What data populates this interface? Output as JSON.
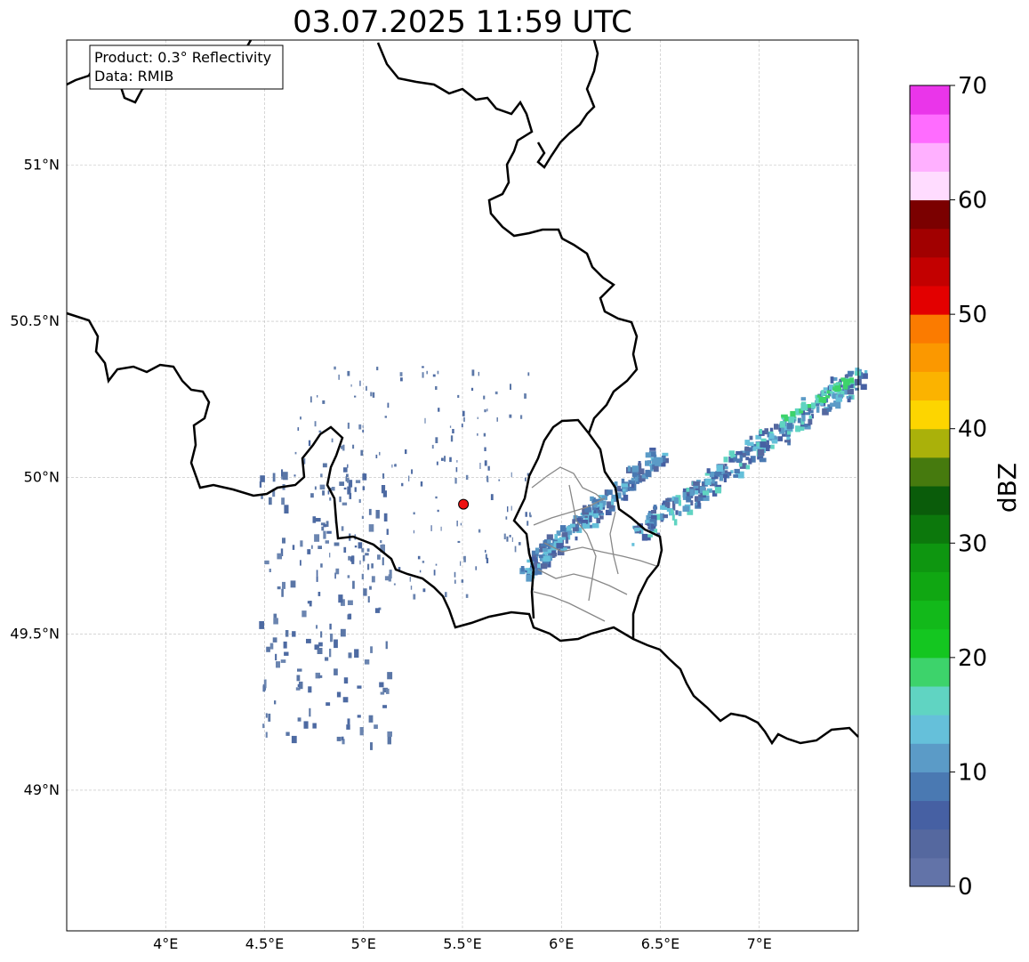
{
  "title": "03.07.2025 11:59 UTC",
  "info": {
    "product": "Product: 0.3° Reflectivity",
    "data": "Data: RMIB"
  },
  "map": {
    "lon_range": [
      3.5,
      7.5
    ],
    "lat_range": [
      48.55,
      51.4
    ],
    "lon_ticks": [
      {
        "value": 4.0,
        "label": "4°E"
      },
      {
        "value": 4.5,
        "label": "4.5°E"
      },
      {
        "value": 5.0,
        "label": "5°E"
      },
      {
        "value": 5.5,
        "label": "5.5°E"
      },
      {
        "value": 6.0,
        "label": "6°E"
      },
      {
        "value": 6.5,
        "label": "6.5°E"
      },
      {
        "value": 7.0,
        "label": "7°E"
      }
    ],
    "lat_ticks": [
      {
        "value": 49.0,
        "label": "49°N"
      },
      {
        "value": 49.5,
        "label": "49.5°N"
      },
      {
        "value": 50.0,
        "label": "50°N"
      },
      {
        "value": 50.5,
        "label": "50.5°N"
      },
      {
        "value": 51.0,
        "label": "51°N"
      }
    ],
    "grid": true,
    "radar_site": {
      "lon": 5.505,
      "lat": 49.915,
      "color": "#ee1111"
    },
    "border_color": "#000000",
    "region_border_color": "#888888"
  },
  "colorbar": {
    "label": "dBZ",
    "range": [
      0,
      70
    ],
    "ticks": [
      {
        "value": 0,
        "label": "0"
      },
      {
        "value": 10,
        "label": "10"
      },
      {
        "value": 20,
        "label": "20"
      },
      {
        "value": 30,
        "label": "30"
      },
      {
        "value": 40,
        "label": "40"
      },
      {
        "value": 50,
        "label": "50"
      },
      {
        "value": 60,
        "label": "60"
      },
      {
        "value": 70,
        "label": "70"
      }
    ],
    "colors": [
      "#6273a8",
      "#55689f",
      "#4660a3",
      "#4a79b2",
      "#5b9bc7",
      "#65c0da",
      "#60d4c2",
      "#3dd36b",
      "#14c620",
      "#12b91a",
      "#10a712",
      "#0e9610",
      "#0c780c",
      "#0a5c0a",
      "#467a0e",
      "#aab10a",
      "#fdd500",
      "#fbb300",
      "#fb9800",
      "#fb7b00",
      "#e30000",
      "#c30000",
      "#a10000",
      "#7b0000",
      "#ffdcff",
      "#ffb0ff",
      "#ff6cff",
      "#ea35ea"
    ]
  }
}
